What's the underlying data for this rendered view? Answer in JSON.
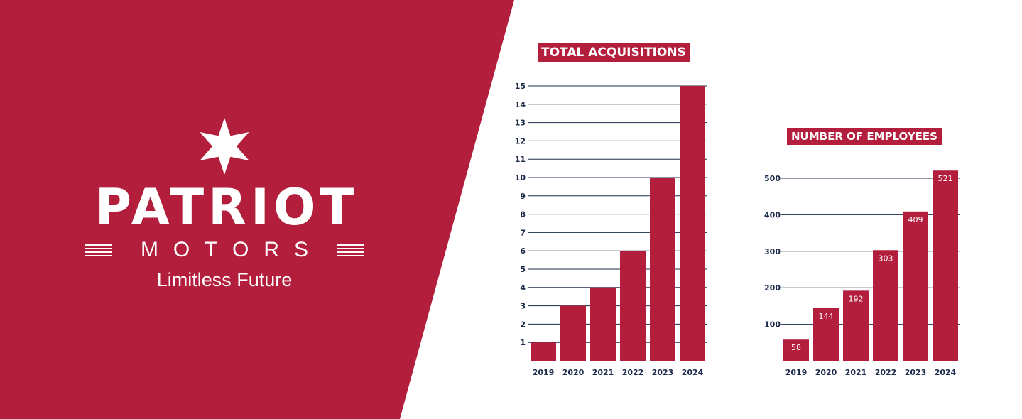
{
  "brand": {
    "name": "PATRIOT",
    "sub": "MOTORS",
    "tagline": "Limitless Future",
    "logo_icon": "six-point-star-icon",
    "color": "#b31e3c"
  },
  "chart_data": [
    {
      "type": "bar",
      "title": "TOTAL ACQUISITIONS",
      "categories": [
        "2019",
        "2020",
        "2021",
        "2022",
        "2023",
        "2024"
      ],
      "values": [
        1,
        3,
        4,
        6,
        10,
        15
      ],
      "yticks": [
        1,
        2,
        3,
        4,
        5,
        6,
        7,
        8,
        9,
        10,
        11,
        12,
        13,
        14,
        15
      ],
      "ylim": [
        0,
        15
      ],
      "grid": true,
      "bar_color": "#b31e3c"
    },
    {
      "type": "bar",
      "title": "NUMBER OF EMPLOYEES",
      "categories": [
        "2019",
        "2020",
        "2021",
        "2022",
        "2023",
        "2024"
      ],
      "values": [
        58,
        144,
        192,
        303,
        409,
        521
      ],
      "data_labels": [
        "58",
        "144",
        "192",
        "303",
        "409",
        "521"
      ],
      "yticks": [
        100,
        200,
        300,
        400,
        500
      ],
      "ylim": [
        0,
        500
      ],
      "grid": true,
      "bar_color": "#b31e3c"
    }
  ]
}
